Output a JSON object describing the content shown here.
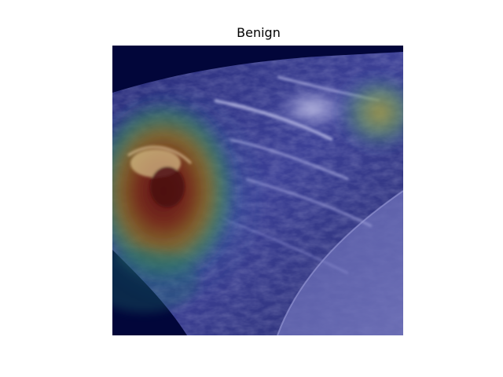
{
  "figure": {
    "title": "Benign"
  },
  "image": {
    "description_icon": "heatmap-overlay-image",
    "colors": {
      "background_navy": "#02063a",
      "tissue_blue": "#3a3e8e",
      "tissue_light": "#b8b8e6",
      "hot_red": "#7a1a12",
      "warm_yellow": "#c7a838",
      "cool_cyan": "#3fc0c0",
      "green": "#3f9a52"
    }
  }
}
